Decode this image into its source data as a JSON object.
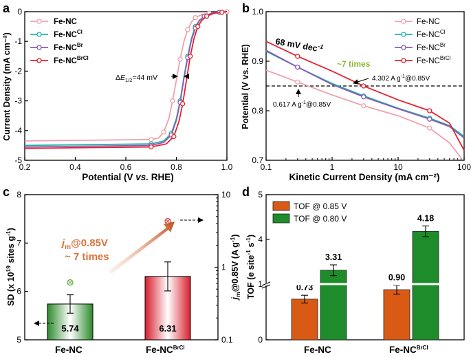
{
  "chart_data": [
    {
      "panel": "a",
      "type": "line",
      "xlabel_pre": "Potential (V ",
      "xlabel_it": "vs.",
      "xlabel_post": " RHE)",
      "ylabel": "Current Density (mA cm⁻²)",
      "xlim": [
        0.2,
        1.0
      ],
      "ylim": [
        -5,
        0
      ],
      "xticks": [
        "0.2",
        "0.4",
        "0.6",
        "0.8",
        "1.0"
      ],
      "yticks": [
        "-5",
        "-4",
        "-3",
        "-2",
        "-1",
        "0"
      ],
      "annotation": {
        "pre": "Δ",
        "e": "E",
        "sub": "1/2",
        "post": "=44 mV"
      },
      "series": [
        {
          "name": "Fe-NC",
          "base": "Fe-NC",
          "sup": "",
          "color": "#f0a0ac",
          "marker": "circle",
          "x": [
            0.2,
            0.7,
            0.73,
            0.75,
            0.77,
            0.785,
            0.8,
            0.815,
            0.83,
            0.845,
            0.86,
            0.875,
            0.9,
            0.93,
            0.96,
            1.0
          ],
          "y": [
            -4.35,
            -4.3,
            -4.25,
            -4.05,
            -3.6,
            -3.0,
            -2.3,
            -1.6,
            -1.0,
            -0.6,
            -0.35,
            -0.2,
            -0.1,
            -0.05,
            -0.02,
            0.0
          ]
        },
        {
          "name": "Fe-NC^Cl",
          "base": "Fe-NC",
          "sup": "Cl",
          "color": "#1fb5a8",
          "marker": "circle",
          "x": [
            0.2,
            0.7,
            0.75,
            0.78,
            0.8,
            0.815,
            0.83,
            0.845,
            0.86,
            0.875,
            0.89,
            0.91,
            0.94,
            0.97,
            1.0
          ],
          "y": [
            -4.5,
            -4.45,
            -4.35,
            -4.1,
            -3.6,
            -3.0,
            -2.2,
            -1.5,
            -0.9,
            -0.5,
            -0.3,
            -0.15,
            -0.05,
            -0.02,
            0.0
          ]
        },
        {
          "name": "Fe-NC^Br",
          "base": "Fe-NC",
          "sup": "Br",
          "color": "#8a5ab5",
          "marker": "circle",
          "x": [
            0.2,
            0.7,
            0.75,
            0.78,
            0.8,
            0.815,
            0.83,
            0.845,
            0.86,
            0.875,
            0.89,
            0.91,
            0.94,
            0.97,
            1.0
          ],
          "y": [
            -4.55,
            -4.5,
            -4.4,
            -4.15,
            -3.65,
            -3.05,
            -2.25,
            -1.55,
            -0.95,
            -0.55,
            -0.32,
            -0.15,
            -0.05,
            -0.02,
            0.0
          ]
        },
        {
          "name": "Fe-NC^BrCl",
          "base": "Fe-NC",
          "sup": "BrCl",
          "color": "#e8202e",
          "marker": "circle",
          "x": [
            0.2,
            0.7,
            0.76,
            0.79,
            0.81,
            0.825,
            0.84,
            0.855,
            0.87,
            0.885,
            0.9,
            0.92,
            0.95,
            0.98,
            1.0
          ],
          "y": [
            -4.6,
            -4.55,
            -4.45,
            -4.2,
            -3.7,
            -3.1,
            -2.3,
            -1.5,
            -0.9,
            -0.5,
            -0.3,
            -0.15,
            -0.05,
            -0.02,
            0.0
          ]
        }
      ]
    },
    {
      "panel": "b",
      "type": "line",
      "xscale": "log",
      "xlabel": "Kinetic Current Density (mA cm⁻²)",
      "ylabel": "Potential (V vs. RHE)",
      "xlim": [
        0.1,
        100
      ],
      "ylim": [
        0.7,
        1.0
      ],
      "xticks": [
        "0.1",
        "1",
        "10",
        "100"
      ],
      "yticks": [
        "0.7",
        "0.8",
        "0.9",
        "1.0"
      ],
      "dashed_y": 0.85,
      "tafel": {
        "main": "68 mV dec",
        "sup": "-1"
      },
      "times": "~7 times",
      "label_high": {
        "pre": "4.302 A g",
        "sup": "-1",
        "post": "@0.85V"
      },
      "label_low": {
        "pre": "0.617 A g",
        "sup": "-1",
        "post": "@0.85V"
      },
      "series": [
        {
          "name": "Fe-NC",
          "base": "Fe-NC",
          "sup": "",
          "color": "#f0a0ac",
          "x": [
            0.1,
            0.3,
            1,
            3,
            10,
            30,
            60,
            90
          ],
          "y": [
            0.882,
            0.858,
            0.832,
            0.81,
            0.79,
            0.765,
            0.735,
            0.705
          ]
        },
        {
          "name": "Fe-NC^Cl",
          "base": "Fe-NC",
          "sup": "Cl",
          "color": "#1fb5a8",
          "x": [
            0.1,
            0.3,
            1,
            3,
            10,
            30,
            60,
            100
          ],
          "y": [
            0.92,
            0.888,
            0.855,
            0.83,
            0.805,
            0.785,
            0.77,
            0.748
          ]
        },
        {
          "name": "Fe-NC^Br",
          "base": "Fe-NC",
          "sup": "Br",
          "color": "#8a5ab5",
          "x": [
            0.1,
            0.3,
            1,
            3,
            10,
            30,
            60,
            100
          ],
          "y": [
            0.922,
            0.888,
            0.853,
            0.828,
            0.804,
            0.783,
            0.768,
            0.745
          ]
        },
        {
          "name": "Fe-NC^BrCl",
          "base": "Fe-NC",
          "sup": "BrCl",
          "color": "#e8202e",
          "x": [
            0.1,
            0.3,
            1,
            3,
            10,
            30,
            60,
            100
          ],
          "y": [
            0.94,
            0.91,
            0.88,
            0.85,
            0.822,
            0.8,
            0.775,
            0.72
          ]
        }
      ]
    },
    {
      "panel": "c",
      "type": "bar",
      "categories": [
        "Fe-NC",
        "Fe-NC^BrCl"
      ],
      "category_base": [
        "Fe-NC",
        "Fe-NC"
      ],
      "category_sup": [
        "",
        "BrCl"
      ],
      "values": [
        5.74,
        6.31
      ],
      "value_labels": [
        "5.74",
        "6.31"
      ],
      "errors": [
        0.19,
        0.3
      ],
      "ylabel_left": {
        "pre": "SD (x 10",
        "sup": "19",
        "post": " sites g",
        "sup2": "-1",
        "end": ")"
      },
      "ylabel_right": {
        "j": "j",
        "sub": "m",
        "post": "@0.85V (A g",
        "sup": "-1",
        "end": ")"
      },
      "ylim_left": [
        5,
        8
      ],
      "yticks_left": [
        "5",
        "6",
        "7",
        "8"
      ],
      "yticks_right": [
        "0.1",
        "1",
        "10"
      ],
      "secondary": {
        "values": [
          0.617,
          4.302
        ],
        "log_range": [
          0.1,
          10
        ]
      },
      "annotation": {
        "j": "j",
        "sub": "m",
        "post": "@0.85V",
        "times": "~ 7 times"
      }
    },
    {
      "panel": "d",
      "type": "bar",
      "ylabel": {
        "pre": "TOF (e site",
        "sup": "-1",
        "mid": " s",
        "sup2": "-1",
        "end": ")"
      },
      "categories": [
        "Fe-NC",
        "Fe-NC^BrCl"
      ],
      "category_base": [
        "Fe-NC",
        "Fe-NC"
      ],
      "category_sup": [
        "",
        "BrCl"
      ],
      "yticks": [
        "0",
        "1",
        "4",
        "5"
      ],
      "series": [
        {
          "name": "TOF @ 0.85 V",
          "color": "#d85a14",
          "values": [
            0.73,
            0.9
          ],
          "labels": [
            "0.73",
            "0.90"
          ]
        },
        {
          "name": "TOF @ 0.80 V",
          "color": "#1e8c2a",
          "values": [
            3.31,
            4.18
          ],
          "labels": [
            "3.31",
            "4.18"
          ]
        }
      ]
    }
  ],
  "panel_letters": [
    "a",
    "b",
    "c",
    "d"
  ]
}
